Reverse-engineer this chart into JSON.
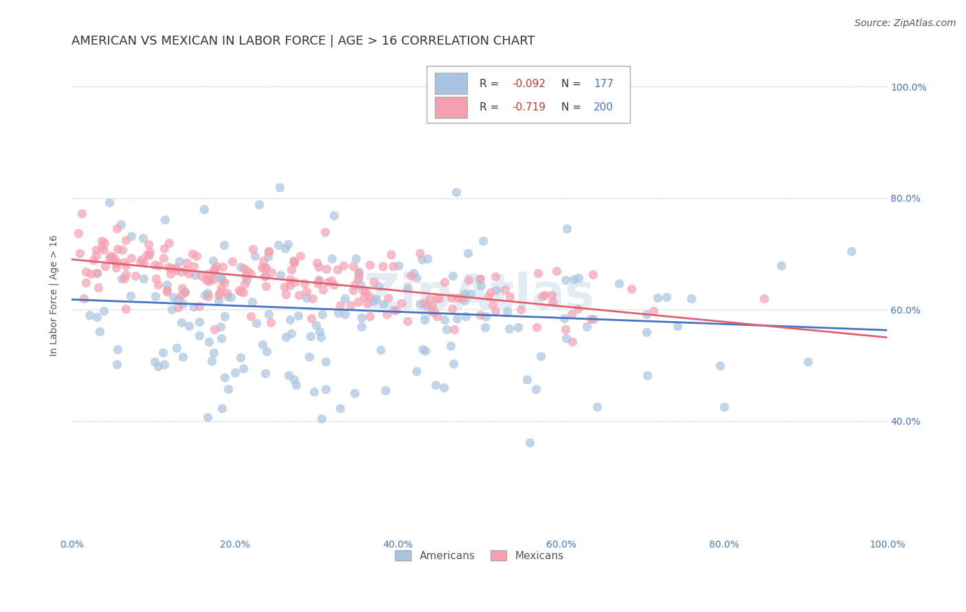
{
  "title": "AMERICAN VS MEXICAN IN LABOR FORCE | AGE > 16 CORRELATION CHART",
  "source": "Source: ZipAtlas.com",
  "ylabel": "In Labor Force | Age > 16",
  "xlabel": "",
  "x_min": 0.0,
  "x_max": 1.0,
  "y_min": 0.2,
  "y_max": 1.05,
  "americans_color": "#a8c4e0",
  "mexicans_color": "#f4a0b0",
  "americans_line_color": "#4472c4",
  "mexicans_line_color": "#e06070",
  "americans_R": -0.092,
  "americans_N": 177,
  "mexicans_R": -0.719,
  "mexicans_N": 200,
  "americans_intercept": 0.618,
  "americans_slope": -0.055,
  "mexicans_intercept": 0.69,
  "mexicans_slope": -0.14,
  "legend_R_color": "#333333",
  "legend_N_color": "#4472c4",
  "title_fontsize": 13,
  "axis_label_fontsize": 10,
  "tick_label_fontsize": 10,
  "source_fontsize": 10,
  "background_color": "#ffffff",
  "grid_color": "#cccccc",
  "watermark_text": "ZipAtlas",
  "watermark_color": "#c8d8e8",
  "watermark_alpha": 0.5
}
